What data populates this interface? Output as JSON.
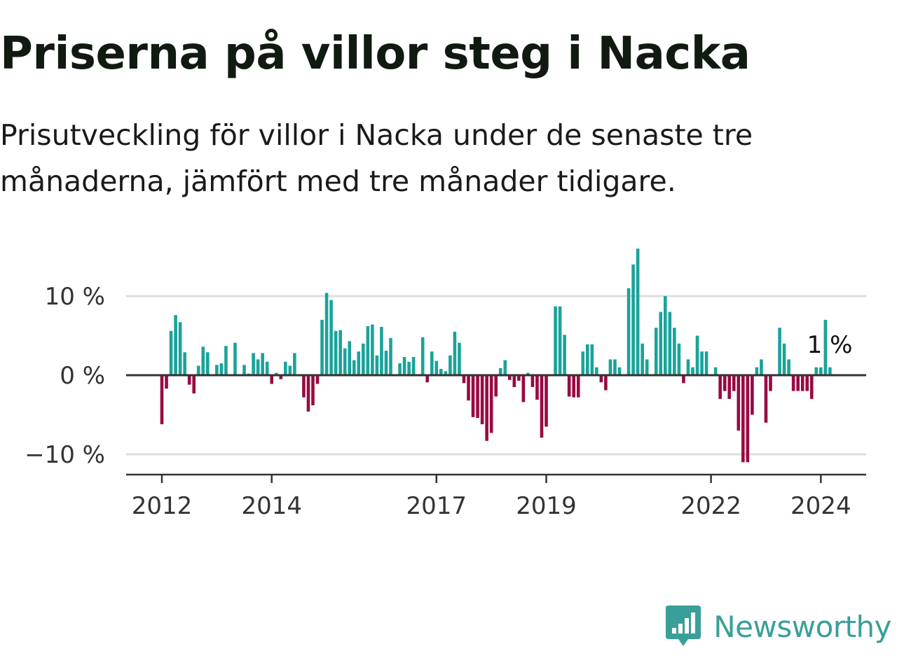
{
  "title": "Priserna på villor steg i Nacka",
  "subtitle": "Prisutveckling för villor i Nacka under de senaste tre månaderna, jämfört med tre månader tidigare.",
  "brand": {
    "name": "Newsworthy",
    "icon": "newsworthy-logo-icon"
  },
  "colors": {
    "positive": "#1aa39a",
    "negative": "#990a42",
    "zero_line": "#333333",
    "grid": "#dddddd",
    "brand": "#3a9f98"
  },
  "chart_data": {
    "type": "bar",
    "title": "",
    "xlabel": "",
    "ylabel": "",
    "ylim": [
      -12,
      16
    ],
    "y_ticks": [
      {
        "value": 10,
        "label": "10 %"
      },
      {
        "value": 0,
        "label": "0 %"
      },
      {
        "value": -10,
        "label": "−10 %"
      }
    ],
    "x_ticks": [
      {
        "date": "2012-01",
        "label": "2012"
      },
      {
        "date": "2014-01",
        "label": "2014"
      },
      {
        "date": "2017-01",
        "label": "2017"
      },
      {
        "date": "2019-01",
        "label": "2019"
      },
      {
        "date": "2022-01",
        "label": "2022"
      },
      {
        "date": "2024-01",
        "label": "2024"
      }
    ],
    "grid": "horizontal",
    "last_value_label": "1 %",
    "dates": [
      "2012-01",
      "2012-02",
      "2012-03",
      "2012-04",
      "2012-05",
      "2012-06",
      "2012-07",
      "2012-08",
      "2012-09",
      "2012-10",
      "2012-11",
      "2012-12",
      "2013-01",
      "2013-02",
      "2013-03",
      "2013-04",
      "2013-05",
      "2013-06",
      "2013-07",
      "2013-08",
      "2013-09",
      "2013-10",
      "2013-11",
      "2013-12",
      "2014-01",
      "2014-02",
      "2014-03",
      "2014-04",
      "2014-05",
      "2014-06",
      "2014-07",
      "2014-08",
      "2014-09",
      "2014-10",
      "2014-11",
      "2014-12",
      "2015-01",
      "2015-02",
      "2015-03",
      "2015-04",
      "2015-05",
      "2015-06",
      "2015-07",
      "2015-08",
      "2015-09",
      "2015-10",
      "2015-11",
      "2015-12",
      "2016-01",
      "2016-02",
      "2016-03",
      "2016-04",
      "2016-05",
      "2016-06",
      "2016-07",
      "2016-08",
      "2016-09",
      "2016-10",
      "2016-11",
      "2016-12",
      "2017-01",
      "2017-02",
      "2017-03",
      "2017-04",
      "2017-05",
      "2017-06",
      "2017-07",
      "2017-08",
      "2017-09",
      "2017-10",
      "2017-11",
      "2017-12",
      "2018-01",
      "2018-02",
      "2018-03",
      "2018-04",
      "2018-05",
      "2018-06",
      "2018-07",
      "2018-08",
      "2018-09",
      "2018-10",
      "2018-11",
      "2018-12",
      "2019-01",
      "2019-02",
      "2019-03",
      "2019-04",
      "2019-05",
      "2019-06",
      "2019-07",
      "2019-08",
      "2019-09",
      "2019-10",
      "2019-11",
      "2019-12",
      "2020-01",
      "2020-02",
      "2020-03",
      "2020-04",
      "2020-05",
      "2020-06",
      "2020-07",
      "2020-08",
      "2020-09",
      "2020-10",
      "2020-11",
      "2020-12",
      "2021-01",
      "2021-02",
      "2021-03",
      "2021-04",
      "2021-05",
      "2021-06",
      "2021-07",
      "2021-08",
      "2021-09",
      "2021-10",
      "2021-11",
      "2021-12",
      "2022-01",
      "2022-02",
      "2022-03",
      "2022-04",
      "2022-05",
      "2022-06",
      "2022-07",
      "2022-08",
      "2022-09",
      "2022-10",
      "2022-11",
      "2022-12",
      "2023-01",
      "2023-02",
      "2023-03",
      "2023-04",
      "2023-05",
      "2023-06",
      "2023-07",
      "2023-08",
      "2023-09",
      "2023-10",
      "2023-11",
      "2023-12",
      "2024-01",
      "2024-02",
      "2024-03"
    ],
    "values": [
      -6.2,
      -1.7,
      5.6,
      7.6,
      6.7,
      2.9,
      -1.2,
      -2.3,
      1.2,
      3.6,
      2.9,
      0,
      1.3,
      1.5,
      3.7,
      0,
      4.1,
      0,
      1.3,
      0.2,
      2.8,
      2.0,
      2.8,
      1.7,
      -1.1,
      0.3,
      -0.5,
      1.7,
      1.2,
      2.8,
      0,
      -2.8,
      -4.6,
      -3.8,
      -1.1,
      7.0,
      10.4,
      9.5,
      5.6,
      5.7,
      3.4,
      4.3,
      1.9,
      3.0,
      4.0,
      6.2,
      6.4,
      2.5,
      6.1,
      3.1,
      4.7,
      0,
      1.5,
      2.3,
      1.7,
      2.3,
      0,
      4.8,
      -0.9,
      3.0,
      1.8,
      0.8,
      0.5,
      2.5,
      5.5,
      4.1,
      -1.0,
      -3.2,
      -5.3,
      -5.4,
      -6.2,
      -8.3,
      -7.3,
      -2.7,
      0.9,
      1.9,
      -0.6,
      -1.5,
      -0.7,
      -3.4,
      0.3,
      -1.5,
      -3.1,
      -7.9,
      -6.5,
      0,
      8.7,
      8.7,
      5.1,
      -2.7,
      -2.8,
      -2.8,
      3.0,
      3.9,
      3.9,
      1.0,
      -0.9,
      -1.9,
      2.0,
      2.0,
      1.0,
      0,
      11.0,
      14.0,
      16.0,
      4.0,
      2.0,
      0,
      6.0,
      8.0,
      10.0,
      8.0,
      6.0,
      4.0,
      -1.0,
      2.0,
      1.0,
      5.0,
      3.0,
      3.0,
      0,
      1.0,
      -3.0,
      -2.0,
      -3.0,
      -2.0,
      -7.0,
      -11.0,
      -11.0,
      -5.0,
      1.0,
      2.0,
      -6.0,
      -2.0,
      0,
      6.0,
      4.0,
      2.0,
      -2.0,
      -2.0,
      -2.0,
      -2.0,
      -3.0,
      1.0,
      1.0,
      7.0,
      1.0
    ]
  }
}
